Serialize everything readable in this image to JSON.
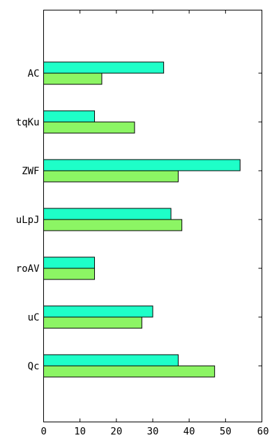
{
  "chart_data": {
    "type": "bar",
    "orientation": "horizontal",
    "categories": [
      "AC",
      "tqKu",
      "ZWF",
      "uLpJ",
      "roAV",
      "uC",
      "Qc"
    ],
    "series": [
      {
        "color": "#1effc8",
        "values": [
          33,
          14,
          54,
          35,
          14,
          30,
          37
        ]
      },
      {
        "color": "#8cf564",
        "values": [
          16,
          25,
          37,
          38,
          14,
          27,
          47
        ]
      }
    ],
    "xlim": [
      0,
      60
    ],
    "xticks": [
      0,
      10,
      20,
      30,
      40,
      50,
      60
    ],
    "title": "",
    "xlabel": "",
    "ylabel": "",
    "grid": false,
    "legend": "none"
  }
}
